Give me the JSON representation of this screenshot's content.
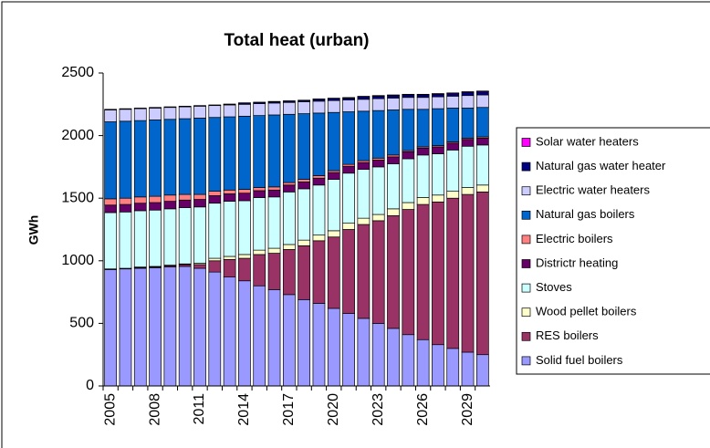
{
  "chart_data": {
    "type": "stacked-bar",
    "title": "Total heat (urban)",
    "y_label": "GWh",
    "categories": [
      "2005",
      null,
      null,
      "2008",
      null,
      null,
      "2011",
      null,
      null,
      "2014",
      null,
      null,
      "2017",
      null,
      null,
      "2020",
      null,
      null,
      "2023",
      null,
      null,
      "2026",
      null,
      null,
      "2029",
      null
    ],
    "ylim": [
      0,
      2500
    ],
    "yticks": [
      0,
      500,
      1000,
      1500,
      2000,
      2500
    ],
    "grid": false,
    "legend": "right",
    "series": [
      {
        "name": "Solid fuel boilers",
        "color": "#9999ff",
        "values": [
          930,
          935,
          940,
          945,
          950,
          955,
          940,
          910,
          870,
          840,
          800,
          770,
          730,
          690,
          660,
          620,
          580,
          540,
          500,
          460,
          410,
          370,
          330,
          300,
          270,
          250
        ]
      },
      {
        "name": "RES boilers",
        "color": "#993366",
        "values": [
          0,
          0,
          5,
          5,
          10,
          15,
          30,
          90,
          140,
          180,
          250,
          290,
          360,
          430,
          500,
          570,
          670,
          750,
          820,
          900,
          1000,
          1080,
          1140,
          1200,
          1260,
          1300
        ]
      },
      {
        "name": "Wood pellet boilers",
        "color": "#ffffcc",
        "values": [
          5,
          5,
          5,
          5,
          5,
          5,
          10,
          20,
          25,
          30,
          35,
          40,
          40,
          45,
          45,
          50,
          50,
          50,
          50,
          55,
          55,
          55,
          55,
          55,
          55,
          55
        ]
      },
      {
        "name": "Stoves",
        "color": "#ccffff",
        "values": [
          450,
          450,
          450,
          450,
          450,
          450,
          450,
          440,
          440,
          430,
          420,
          410,
          420,
          410,
          400,
          410,
          400,
          390,
          380,
          360,
          350,
          340,
          330,
          330,
          330,
          320
        ]
      },
      {
        "name": "Districtr heating",
        "color": "#660066",
        "values": [
          60,
          60,
          60,
          60,
          60,
          60,
          60,
          60,
          60,
          60,
          55,
          55,
          55,
          55,
          55,
          55,
          55,
          55,
          55,
          55,
          55,
          55,
          55,
          55,
          55,
          55
        ]
      },
      {
        "name": "Electric boilers",
        "color": "#ff8080",
        "values": [
          50,
          50,
          50,
          50,
          50,
          45,
          40,
          35,
          30,
          30,
          25,
          25,
          20,
          20,
          20,
          15,
          15,
          15,
          15,
          15,
          10,
          10,
          10,
          10,
          10,
          10
        ]
      },
      {
        "name": "Natural gas boilers",
        "color": "#0066cc",
        "values": [
          615,
          615,
          610,
          610,
          605,
          605,
          610,
          590,
          585,
          585,
          575,
          575,
          545,
          525,
          500,
          465,
          420,
          395,
          380,
          360,
          330,
          300,
          295,
          270,
          240,
          235
        ]
      },
      {
        "name": "Electric water heaters",
        "color": "#ccccff",
        "values": [
          95,
          95,
          95,
          95,
          95,
          95,
          95,
          95,
          95,
          95,
          95,
          95,
          95,
          95,
          95,
          95,
          95,
          95,
          95,
          95,
          95,
          95,
          95,
          95,
          100,
          100
        ]
      },
      {
        "name": "Natural gas water heater",
        "color": "#000080",
        "values": [
          5,
          5,
          5,
          5,
          5,
          5,
          5,
          5,
          5,
          10,
          10,
          10,
          10,
          10,
          15,
          15,
          15,
          20,
          20,
          20,
          20,
          20,
          20,
          20,
          25,
          25
        ]
      },
      {
        "name": "Solar water heaters",
        "color": "#ff00ff",
        "values": [
          0,
          0,
          0,
          0,
          0,
          0,
          0,
          0,
          2,
          2,
          2,
          3,
          3,
          3,
          3,
          4,
          4,
          4,
          5,
          5,
          5,
          5,
          6,
          6,
          6,
          6
        ]
      }
    ]
  }
}
